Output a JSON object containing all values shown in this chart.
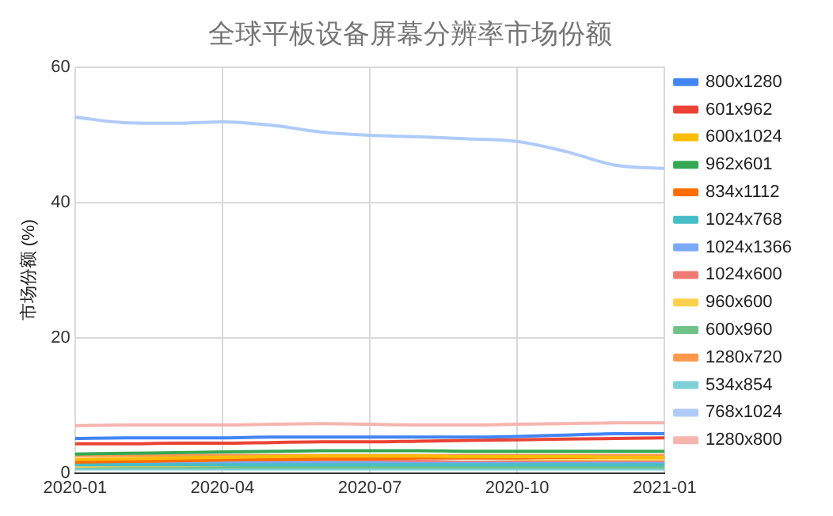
{
  "chart_data": {
    "type": "line",
    "title": "全球平板设备屏幕分辨率市场份额",
    "ylabel": "市场份额 (%)",
    "x": [
      "2020-01",
      "2020-02",
      "2020-03",
      "2020-04",
      "2020-05",
      "2020-06",
      "2020-07",
      "2020-08",
      "2020-09",
      "2020-10",
      "2020-11",
      "2020-12",
      "2021-01"
    ],
    "xlim": [
      "2020-01",
      "2021-01"
    ],
    "xticks": [
      "2020-01",
      "2020-04",
      "2020-07",
      "2020-10",
      "2021-01"
    ],
    "ylim": [
      0,
      60
    ],
    "yticks": [
      0,
      20,
      40,
      60
    ],
    "grid": true,
    "legend": "right",
    "marker": "none",
    "line_style": "solid",
    "series": [
      {
        "name": "800x1280",
        "color": "#4285f4",
        "values": [
          5.1,
          5.2,
          5.2,
          5.2,
          5.3,
          5.3,
          5.3,
          5.3,
          5.3,
          5.4,
          5.6,
          5.8,
          5.8
        ]
      },
      {
        "name": "601x962",
        "color": "#ea4335",
        "values": [
          4.3,
          4.3,
          4.4,
          4.4,
          4.5,
          4.6,
          4.6,
          4.7,
          4.8,
          4.9,
          5.0,
          5.1,
          5.2
        ]
      },
      {
        "name": "600x1024",
        "color": "#fbbc04",
        "values": [
          2.0,
          2.1,
          2.2,
          2.3,
          2.4,
          2.5,
          2.5,
          2.5,
          2.4,
          2.4,
          2.4,
          2.3,
          2.3
        ]
      },
      {
        "name": "962x601",
        "color": "#34a853",
        "values": [
          2.8,
          2.9,
          3.0,
          3.1,
          3.2,
          3.3,
          3.3,
          3.3,
          3.2,
          3.2,
          3.2,
          3.2,
          3.2
        ]
      },
      {
        "name": "834x1112",
        "color": "#ff6d01",
        "values": [
          1.6,
          1.7,
          1.8,
          1.9,
          2.0,
          2.1,
          2.1,
          2.2,
          2.2,
          2.2,
          2.3,
          2.3,
          2.3
        ]
      },
      {
        "name": "1024x768",
        "color": "#46bdc6",
        "values": [
          1.2,
          1.2,
          1.2,
          1.2,
          1.2,
          1.2,
          1.2,
          1.2,
          1.2,
          1.2,
          1.2,
          1.2,
          1.2
        ]
      },
      {
        "name": "1024x1366",
        "color": "#7baaf7",
        "values": [
          1.5,
          1.5,
          1.5,
          1.5,
          1.5,
          1.5,
          1.5,
          1.4,
          1.4,
          1.4,
          1.4,
          1.4,
          1.4
        ]
      },
      {
        "name": "1024x600",
        "color": "#f07b72",
        "values": [
          1.8,
          1.8,
          1.8,
          1.7,
          1.7,
          1.7,
          1.7,
          1.7,
          1.6,
          1.6,
          1.6,
          1.6,
          1.6
        ]
      },
      {
        "name": "960x600",
        "color": "#fcd04f",
        "values": [
          1.0,
          1.1,
          1.1,
          1.2,
          1.3,
          1.4,
          1.5,
          1.6,
          1.6,
          1.7,
          1.8,
          1.8,
          1.9
        ]
      },
      {
        "name": "600x960",
        "color": "#71c287",
        "values": [
          0.9,
          0.9,
          0.9,
          0.9,
          0.9,
          0.9,
          0.9,
          0.9,
          0.9,
          0.9,
          0.9,
          0.9,
          0.9
        ]
      },
      {
        "name": "1280x720",
        "color": "#ff994d",
        "values": [
          2.6,
          2.6,
          2.6,
          2.6,
          2.6,
          2.6,
          2.6,
          2.6,
          2.6,
          2.6,
          2.6,
          2.6,
          2.6
        ]
      },
      {
        "name": "534x854",
        "color": "#7ed1d7",
        "values": [
          0.6,
          0.6,
          0.6,
          0.6,
          0.6,
          0.6,
          0.6,
          0.6,
          0.6,
          0.6,
          0.6,
          0.6,
          0.6
        ]
      },
      {
        "name": "768x1024",
        "color": "#aecbfa",
        "values": [
          52.6,
          51.8,
          51.7,
          51.9,
          51.4,
          50.4,
          49.9,
          49.7,
          49.4,
          49.0,
          47.5,
          45.5,
          45.0
        ]
      },
      {
        "name": "1280x800",
        "color": "#f7b4ae",
        "values": [
          7.0,
          7.1,
          7.1,
          7.1,
          7.2,
          7.3,
          7.2,
          7.1,
          7.1,
          7.2,
          7.3,
          7.4,
          7.4
        ]
      }
    ]
  }
}
